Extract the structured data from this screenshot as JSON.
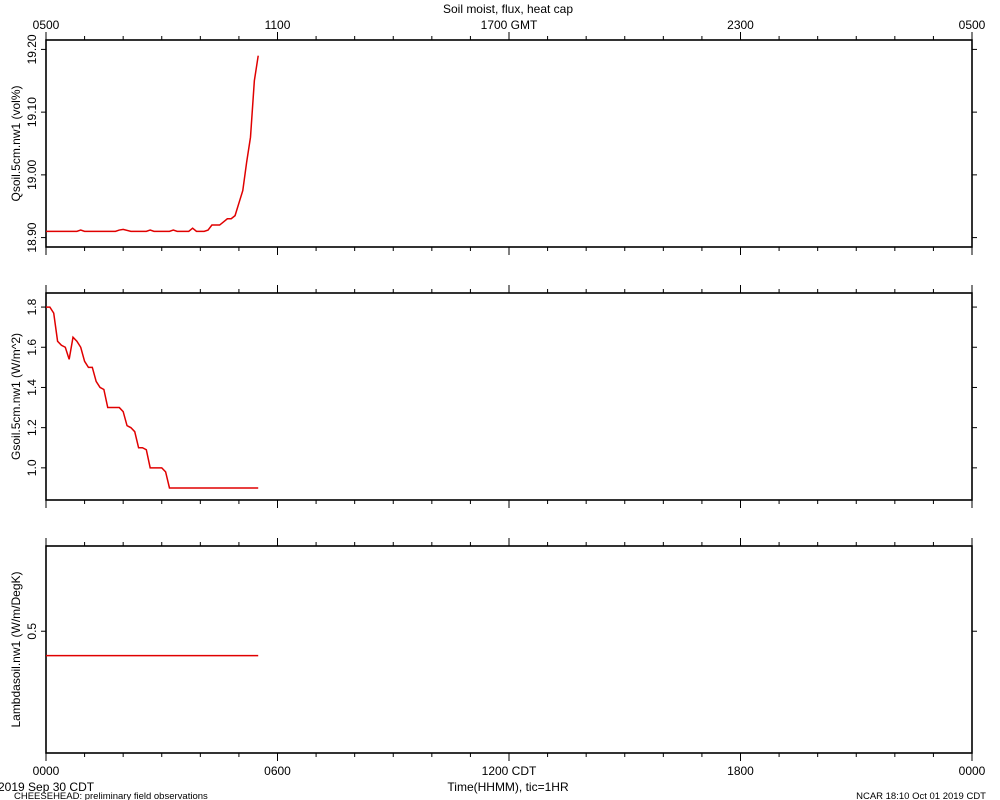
{
  "title": "Soil moist, flux, heat cap",
  "top_axis": {
    "labels": [
      "0500",
      "1100",
      "1700 GMT",
      "2300",
      "0500"
    ]
  },
  "bottom_axis": {
    "labels": [
      "0000",
      "0600",
      "1200 CDT",
      "1800",
      "0000"
    ],
    "xlabel": "Time(HHMM), tic=1HR"
  },
  "footer": {
    "date": "2019 Sep 30 CDT",
    "project": "CHEESEHEAD: preliminary field observations",
    "credit": "NCAR 18:10 Oct 01 2019 CDT"
  },
  "colors": {
    "series": "#e00000",
    "axes": "#000000"
  },
  "chart_data": [
    {
      "type": "line",
      "ylabel": "Qsoil.5cm.nw1 (vol%)",
      "ylim": [
        18.885,
        19.215
      ],
      "ytick_values": [
        18.9,
        19.0,
        19.1,
        19.2
      ],
      "ytick_labels": [
        "18.90",
        "19.00",
        "19.10",
        "19.20"
      ],
      "xlim": [
        0,
        24
      ],
      "x": [
        0,
        0.2,
        0.4,
        0.6,
        0.8,
        0.9,
        1.0,
        1.2,
        1.4,
        1.6,
        1.8,
        1.9,
        2.0,
        2.2,
        2.4,
        2.6,
        2.7,
        2.8,
        2.9,
        3.0,
        3.1,
        3.2,
        3.3,
        3.4,
        3.5,
        3.6,
        3.7,
        3.8,
        3.9,
        4.0,
        4.1,
        4.2,
        4.3,
        4.4,
        4.5,
        4.6,
        4.7,
        4.8,
        4.9,
        5.0,
        5.1,
        5.2,
        5.3,
        5.4,
        5.5
      ],
      "series": [
        {
          "values": [
            18.91,
            18.91,
            18.91,
            18.91,
            18.91,
            18.912,
            18.91,
            18.91,
            18.91,
            18.91,
            18.91,
            18.912,
            18.913,
            18.91,
            18.91,
            18.91,
            18.912,
            18.91,
            18.91,
            18.91,
            18.91,
            18.91,
            18.912,
            18.91,
            18.91,
            18.91,
            18.91,
            18.915,
            18.91,
            18.91,
            18.91,
            18.912,
            18.92,
            18.92,
            18.92,
            18.925,
            18.93,
            18.93,
            18.935,
            18.955,
            18.975,
            19.02,
            19.06,
            19.15,
            19.19
          ]
        }
      ]
    },
    {
      "type": "line",
      "ylabel": "Gsoil.5cm.nw1 (W/m^2)",
      "ylim": [
        0.84,
        1.87
      ],
      "ytick_values": [
        1.0,
        1.2,
        1.4,
        1.6,
        1.8
      ],
      "ytick_labels": [
        "1.0",
        "1.2",
        "1.4",
        "1.6",
        "1.8"
      ],
      "xlim": [
        0,
        24
      ],
      "x": [
        0,
        0.1,
        0.2,
        0.3,
        0.4,
        0.5,
        0.6,
        0.7,
        0.8,
        0.9,
        1.0,
        1.1,
        1.2,
        1.3,
        1.4,
        1.5,
        1.6,
        1.7,
        1.8,
        1.9,
        2.0,
        2.1,
        2.2,
        2.3,
        2.4,
        2.5,
        2.6,
        2.7,
        2.8,
        2.9,
        3.0,
        3.1,
        3.2,
        3.3,
        3.4,
        3.5,
        3.6,
        3.7,
        3.8,
        3.9,
        4.0,
        4.1,
        4.2,
        4.3,
        4.4,
        4.5,
        4.6,
        4.7,
        4.8,
        4.9,
        5.0,
        5.1,
        5.2,
        5.3,
        5.4,
        5.5
      ],
      "series": [
        {
          "values": [
            1.8,
            1.8,
            1.77,
            1.63,
            1.61,
            1.6,
            1.54,
            1.65,
            1.63,
            1.6,
            1.53,
            1.5,
            1.5,
            1.43,
            1.4,
            1.39,
            1.3,
            1.3,
            1.3,
            1.3,
            1.28,
            1.21,
            1.2,
            1.18,
            1.1,
            1.1,
            1.09,
            1.0,
            1.0,
            1.0,
            1.0,
            0.98,
            0.9,
            0.9,
            0.9,
            0.9,
            0.9,
            0.9,
            0.9,
            0.9,
            0.9,
            0.9,
            0.9,
            0.9,
            0.9,
            0.9,
            0.9,
            0.9,
            0.9,
            0.9,
            0.9,
            0.9,
            0.9,
            0.9,
            0.9,
            0.9
          ]
        }
      ]
    },
    {
      "type": "line",
      "ylabel": "Lambdasoil.nw1 (W/m/DegK)",
      "ylim": [
        0.0,
        0.85
      ],
      "ytick_values": [
        0.5
      ],
      "ytick_labels": [
        "0.5"
      ],
      "xlim": [
        0,
        24
      ],
      "x": [
        0,
        5.5
      ],
      "series": [
        {
          "values": [
            0.4,
            0.4
          ]
        }
      ]
    }
  ]
}
